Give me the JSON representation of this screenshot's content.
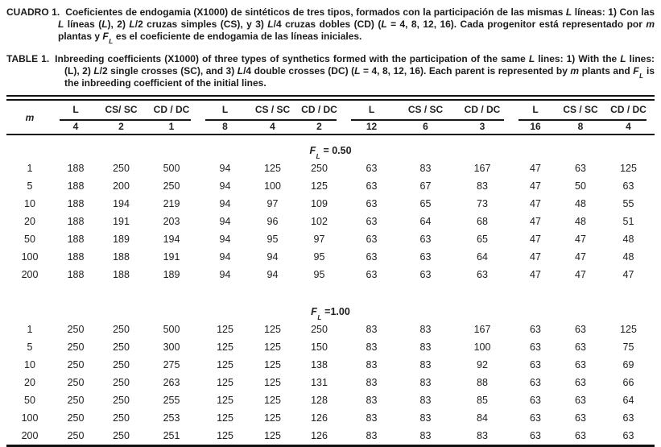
{
  "captions": {
    "es": {
      "label": "CUADRO 1.",
      "segments": [
        "Coeficientes de endogamia (X1000) de sintéticos de tres tipos, formados con la participación de las mismas ",
        "L",
        " líneas: 1) Con las ",
        "L",
        " líneas (",
        "L",
        "), 2) ",
        "L",
        "/2 cruzas simples (CS), y 3) ",
        "L",
        "/4 cruzas dobles (CD) (",
        "L",
        " = 4, 8, 12, 16). Cada progenitor está representado por ",
        "m",
        " plantas y ",
        "F",
        "L",
        " es el coeficiente de endogamia de las líneas iniciales."
      ]
    },
    "en": {
      "label": "TABLE 1.",
      "segments": [
        "Inbreeding coefficients (X1000) of three types of synthetics formed with the participation of the same ",
        "L",
        " lines: 1) With the ",
        "L",
        " lines: (L), 2) ",
        "L",
        "/2 single crosses (SC), and 3) ",
        "L",
        "/4 double crosses (DC) (",
        "L",
        " = 4, 8, 12, 16). Each parent is represented by ",
        "m",
        " plants and ",
        "F",
        "L",
        " is the inbreeding coefficient of the initial lines."
      ]
    }
  },
  "table": {
    "m_label": "m",
    "groups": [
      {
        "l": "L",
        "cs": "CS/ SC",
        "cd": "CD / DC",
        "l_n": "4",
        "cs_n": "2",
        "cd_n": "1"
      },
      {
        "l": "L",
        "cs": "CS / SC",
        "cd": "CD / DC",
        "l_n": "8",
        "cs_n": "4",
        "cd_n": "2"
      },
      {
        "l": "L",
        "cs": "CS / SC",
        "cd": "CD / DC",
        "l_n": "12",
        "cs_n": "6",
        "cd_n": "3"
      },
      {
        "l": "L",
        "cs": "CS / SC",
        "cd": "CD / DC",
        "l_n": "16",
        "cs_n": "8",
        "cd_n": "4"
      }
    ],
    "sections": [
      {
        "title_f": "F",
        "title_sub": "L",
        "title_rest": " = 0.50",
        "rows": [
          {
            "m": "1",
            "values": [
              188,
              250,
              500,
              94,
              125,
              250,
              63,
              83,
              167,
              47,
              63,
              125
            ]
          },
          {
            "m": "5",
            "values": [
              188,
              200,
              250,
              94,
              100,
              125,
              63,
              67,
              83,
              47,
              50,
              63
            ]
          },
          {
            "m": "10",
            "values": [
              188,
              194,
              219,
              94,
              97,
              109,
              63,
              65,
              73,
              47,
              48,
              55
            ]
          },
          {
            "m": "20",
            "values": [
              188,
              191,
              203,
              94,
              96,
              102,
              63,
              64,
              68,
              47,
              48,
              51
            ]
          },
          {
            "m": "50",
            "values": [
              188,
              189,
              194,
              94,
              95,
              97,
              63,
              63,
              65,
              47,
              47,
              48
            ]
          },
          {
            "m": "100",
            "values": [
              188,
              188,
              191,
              94,
              94,
              95,
              63,
              63,
              64,
              47,
              47,
              48
            ]
          },
          {
            "m": "200",
            "values": [
              188,
              188,
              189,
              94,
              94,
              95,
              63,
              63,
              63,
              47,
              47,
              47
            ]
          }
        ]
      },
      {
        "title_f": "F",
        "title_sub": "L",
        "title_rest": " =1.00",
        "rows": [
          {
            "m": "1",
            "values": [
              250,
              250,
              500,
              125,
              125,
              250,
              83,
              83,
              167,
              63,
              63,
              125
            ]
          },
          {
            "m": "5",
            "values": [
              250,
              250,
              300,
              125,
              125,
              150,
              83,
              83,
              100,
              63,
              63,
              75
            ]
          },
          {
            "m": "10",
            "values": [
              250,
              250,
              275,
              125,
              125,
              138,
              83,
              83,
              92,
              63,
              63,
              69
            ]
          },
          {
            "m": "20",
            "values": [
              250,
              250,
              263,
              125,
              125,
              131,
              83,
              83,
              88,
              63,
              63,
              66
            ]
          },
          {
            "m": "50",
            "values": [
              250,
              250,
              255,
              125,
              125,
              128,
              83,
              83,
              85,
              63,
              63,
              64
            ]
          },
          {
            "m": "100",
            "values": [
              250,
              250,
              253,
              125,
              125,
              126,
              83,
              83,
              84,
              63,
              63,
              63
            ]
          },
          {
            "m": "200",
            "values": [
              250,
              250,
              251,
              125,
              125,
              126,
              83,
              83,
              83,
              63,
              63,
              63
            ]
          }
        ]
      }
    ]
  }
}
